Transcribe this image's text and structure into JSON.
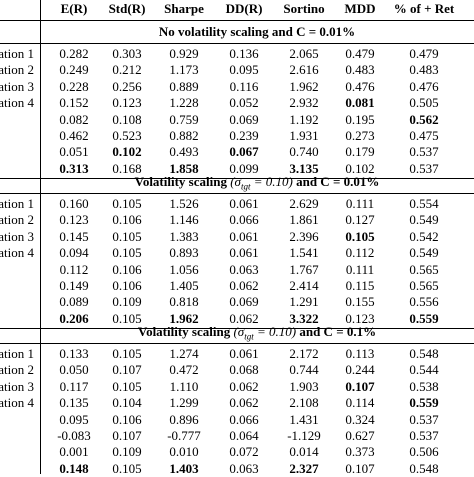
{
  "columns": [
    "E(R)",
    "Std(R)",
    "Sharpe",
    "DD(R)",
    "Sortino",
    "MDD",
    "% of + Ret"
  ],
  "sections": [
    {
      "title_prefix": "No volatility scaling and",
      "title_math": "C = 0.01%",
      "title_sigma": "",
      "rows": [
        {
          "label": "ation 1",
          "values": [
            "0.282",
            "0.303",
            "0.929",
            "0.136",
            "2.065",
            "0.479",
            "0.479"
          ],
          "bold": []
        },
        {
          "label": "ation 2",
          "values": [
            "0.249",
            "0.212",
            "1.173",
            "0.095",
            "2.616",
            "0.483",
            "0.483"
          ],
          "bold": []
        },
        {
          "label": "ation 3",
          "values": [
            "0.228",
            "0.256",
            "0.889",
            "0.116",
            "1.962",
            "0.476",
            "0.476"
          ],
          "bold": []
        },
        {
          "label": "ation 4",
          "values": [
            "0.152",
            "0.123",
            "1.228",
            "0.052",
            "2.932",
            "0.081",
            "0.505"
          ],
          "bold": [
            5
          ]
        },
        {
          "label": "",
          "values": [
            "0.082",
            "0.108",
            "0.759",
            "0.069",
            "1.192",
            "0.195",
            "0.562"
          ],
          "bold": [
            6
          ]
        },
        {
          "label": "",
          "values": [
            "0.462",
            "0.523",
            "0.882",
            "0.239",
            "1.931",
            "0.273",
            "0.475"
          ],
          "bold": []
        },
        {
          "label": "",
          "values": [
            "0.051",
            "0.102",
            "0.493",
            "0.067",
            "0.740",
            "0.179",
            "0.537"
          ],
          "bold": [
            1,
            3
          ]
        },
        {
          "label": "",
          "values": [
            "0.313",
            "0.168",
            "1.858",
            "0.099",
            "3.135",
            "0.102",
            "0.537"
          ],
          "bold": [
            0,
            2,
            4
          ]
        }
      ]
    },
    {
      "title_prefix": "Volatility scaling",
      "title_sigma": "(σ",
      "title_sub": "tgt",
      "title_suffix": " = 0.10)",
      "title_tail": "and C = 0.01%",
      "rows": [
        {
          "label": "ation 1",
          "values": [
            "0.160",
            "0.105",
            "1.526",
            "0.061",
            "2.629",
            "0.111",
            "0.554"
          ],
          "bold": []
        },
        {
          "label": "ation 2",
          "values": [
            "0.123",
            "0.106",
            "1.146",
            "0.066",
            "1.861",
            "0.127",
            "0.549"
          ],
          "bold": []
        },
        {
          "label": "ation 3",
          "values": [
            "0.145",
            "0.105",
            "1.383",
            "0.061",
            "2.396",
            "0.105",
            "0.542"
          ],
          "bold": [
            5
          ]
        },
        {
          "label": "ation 4",
          "values": [
            "0.094",
            "0.105",
            "0.893",
            "0.061",
            "1.541",
            "0.112",
            "0.549"
          ],
          "bold": []
        },
        {
          "label": "",
          "values": [
            "0.112",
            "0.106",
            "1.056",
            "0.063",
            "1.767",
            "0.111",
            "0.565"
          ],
          "bold": []
        },
        {
          "label": "",
          "values": [
            "0.149",
            "0.106",
            "1.405",
            "0.062",
            "2.414",
            "0.115",
            "0.565"
          ],
          "bold": []
        },
        {
          "label": "",
          "values": [
            "0.089",
            "0.109",
            "0.818",
            "0.069",
            "1.291",
            "0.155",
            "0.556"
          ],
          "bold": []
        },
        {
          "label": "",
          "values": [
            "0.206",
            "0.105",
            "1.962",
            "0.062",
            "3.322",
            "0.123",
            "0.559"
          ],
          "bold": [
            0,
            2,
            4,
            6
          ]
        }
      ]
    },
    {
      "title_prefix": "Volatility scaling",
      "title_sigma": "(σ",
      "title_sub": "tgt",
      "title_suffix": " = 0.10)",
      "title_tail": "and C = 0.1%",
      "rows": [
        {
          "label": "ation 1",
          "values": [
            "0.133",
            "0.105",
            "1.274",
            "0.061",
            "2.172",
            "0.113",
            "0.548"
          ],
          "bold": []
        },
        {
          "label": "ation 2",
          "values": [
            "0.050",
            "0.107",
            "0.472",
            "0.068",
            "0.744",
            "0.244",
            "0.544"
          ],
          "bold": []
        },
        {
          "label": "ation 3",
          "values": [
            "0.117",
            "0.105",
            "1.110",
            "0.062",
            "1.903",
            "0.107",
            "0.538"
          ],
          "bold": [
            5
          ]
        },
        {
          "label": "ation 4",
          "values": [
            "0.135",
            "0.104",
            "1.299",
            "0.062",
            "2.108",
            "0.114",
            "0.559"
          ],
          "bold": [
            6
          ]
        },
        {
          "label": "",
          "values": [
            "0.095",
            "0.106",
            "0.896",
            "0.066",
            "1.431",
            "0.324",
            "0.537"
          ],
          "bold": []
        },
        {
          "label": "",
          "values": [
            "-0.083",
            "0.107",
            "-0.777",
            "0.064",
            "-1.129",
            "0.627",
            "0.537"
          ],
          "bold": []
        },
        {
          "label": "",
          "values": [
            "0.001",
            "0.109",
            "0.010",
            "0.072",
            "0.014",
            "0.373",
            "0.506"
          ],
          "bold": []
        },
        {
          "label": "",
          "values": [
            "0.148",
            "0.105",
            "1.403",
            "0.063",
            "2.327",
            "0.107",
            "0.548"
          ],
          "bold": [
            0,
            2,
            4
          ]
        }
      ]
    }
  ]
}
